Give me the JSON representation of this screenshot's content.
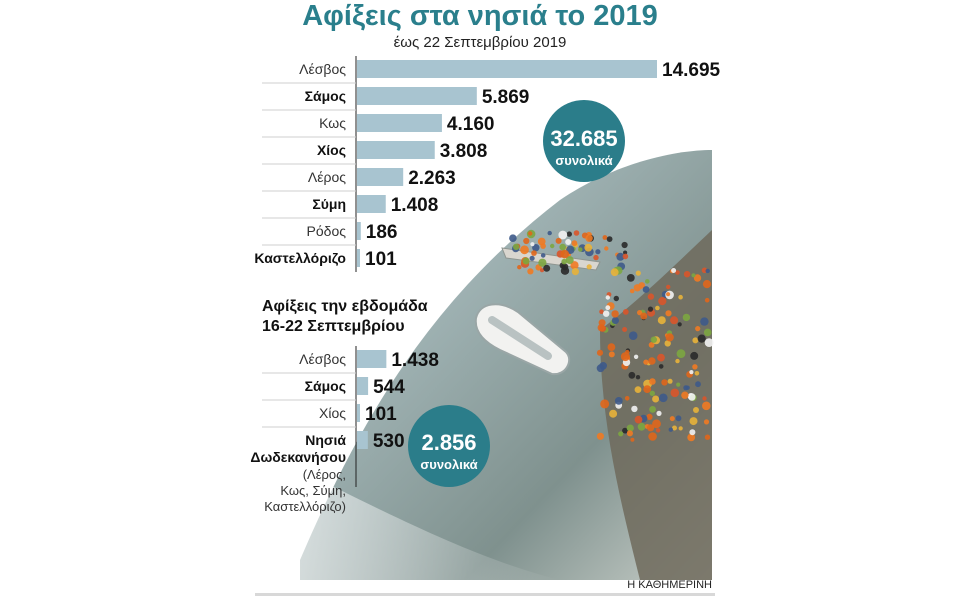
{
  "title": "Αφίξεις στα νησιά το 2019",
  "subtitle": "έως 22 Σεπτεμβρίου 2019",
  "colors": {
    "title": "#2a7f8c",
    "bar": "#a8c4d0",
    "circle": "#2b7d8a",
    "label": "#333333",
    "value": "#111111"
  },
  "chart_data": [
    {
      "type": "bar",
      "orientation": "horizontal",
      "title": "Αφίξεις στα νησιά το 2019",
      "subtitle": "έως 22 Σεπτεμβρίου 2019",
      "categories": [
        "Λέσβος",
        "Σάμος",
        "Κως",
        "Χίος",
        "Λέρος",
        "Σύμη",
        "Ρόδος",
        "Καστελλόριζο"
      ],
      "bold_categories": [
        false,
        true,
        false,
        true,
        false,
        true,
        false,
        true
      ],
      "values": [
        14695,
        5869,
        4160,
        3808,
        2263,
        1408,
        186,
        101
      ],
      "value_labels": [
        "14.695",
        "5.869",
        "4.160",
        "3.808",
        "2.263",
        "1.408",
        "186",
        "101"
      ],
      "total_value": "32.685",
      "total_label": "συνολικά",
      "xlim": [
        0,
        14695
      ],
      "grid": false
    },
    {
      "type": "bar",
      "orientation": "horizontal",
      "title": "Αφίξεις την εβδομάδα 16-22 Σεπτεμβρίου",
      "title_lines": [
        "Αφίξεις την εβδομάδα",
        "16-22 Σεπτεμβρίου"
      ],
      "categories": [
        "Λέσβος",
        "Σάμος",
        "Χίος",
        "Νησιά Δωδεκανήσου"
      ],
      "category_lines": [
        [
          "Λέσβος"
        ],
        [
          "Σάμος"
        ],
        [
          "Χίος"
        ],
        [
          "Νησιά",
          "Δωδεκανήσου"
        ]
      ],
      "bold_categories": [
        false,
        true,
        false,
        true
      ],
      "note_lines": [
        "(Λέρος,",
        "Κως, Σύμη,",
        "Καστελλόριζο)"
      ],
      "values": [
        1438,
        544,
        101,
        530
      ],
      "value_labels": [
        "1.438",
        "544",
        "101",
        "530"
      ],
      "total_value": "2.856",
      "total_label": "συνολικά",
      "xlim": [
        0,
        14695
      ],
      "grid": false
    }
  ],
  "credit": "Η ΚΑΘΗΜΕΡΙΝΗ"
}
